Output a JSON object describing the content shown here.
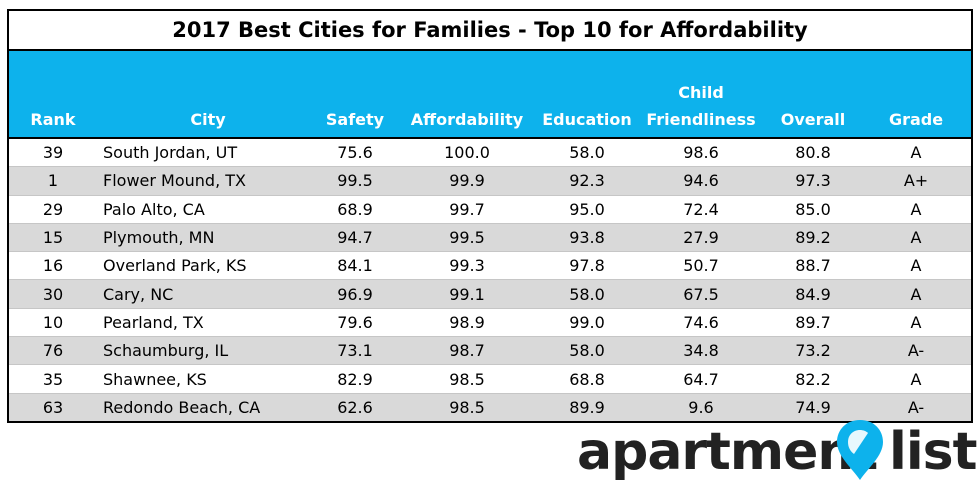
{
  "title": "2017 Best Cities for Families - Top 10 for Affordability",
  "header": {
    "rank": "Rank",
    "city": "City",
    "safety": "Safety",
    "affordability": "Affordability",
    "education": "Education",
    "child_line1": "Child",
    "child_line2": "Friendliness",
    "overall": "Overall",
    "grade": "Grade"
  },
  "rows": [
    {
      "rank": "39",
      "city": "South Jordan, UT",
      "safety": "75.6",
      "affordability": "100.0",
      "education": "58.0",
      "child": "98.6",
      "overall": "80.8",
      "grade": "A"
    },
    {
      "rank": "1",
      "city": "Flower Mound, TX",
      "safety": "99.5",
      "affordability": "99.9",
      "education": "92.3",
      "child": "94.6",
      "overall": "97.3",
      "grade": "A+"
    },
    {
      "rank": "29",
      "city": "Palo Alto, CA",
      "safety": "68.9",
      "affordability": "99.7",
      "education": "95.0",
      "child": "72.4",
      "overall": "85.0",
      "grade": "A"
    },
    {
      "rank": "15",
      "city": "Plymouth, MN",
      "safety": "94.7",
      "affordability": "99.5",
      "education": "93.8",
      "child": "27.9",
      "overall": "89.2",
      "grade": "A"
    },
    {
      "rank": "16",
      "city": "Overland Park, KS",
      "safety": "84.1",
      "affordability": "99.3",
      "education": "97.8",
      "child": "50.7",
      "overall": "88.7",
      "grade": "A"
    },
    {
      "rank": "30",
      "city": "Cary, NC",
      "safety": "96.9",
      "affordability": "99.1",
      "education": "58.0",
      "child": "67.5",
      "overall": "84.9",
      "grade": "A"
    },
    {
      "rank": "10",
      "city": "Pearland, TX",
      "safety": "79.6",
      "affordability": "98.9",
      "education": "99.0",
      "child": "74.6",
      "overall": "89.7",
      "grade": "A"
    },
    {
      "rank": "76",
      "city": "Schaumburg, IL",
      "safety": "73.1",
      "affordability": "98.7",
      "education": "58.0",
      "child": "34.8",
      "overall": "73.2",
      "grade": "A-"
    },
    {
      "rank": "35",
      "city": "Shawnee, KS",
      "safety": "82.9",
      "affordability": "98.5",
      "education": "68.8",
      "child": "64.7",
      "overall": "82.2",
      "grade": "A"
    },
    {
      "rank": "63",
      "city": "Redondo Beach, CA",
      "safety": "62.6",
      "affordability": "98.5",
      "education": "89.9",
      "child": "9.6",
      "overall": "74.9",
      "grade": "A-"
    }
  ],
  "logo": {
    "text_left": "apartment",
    "text_right": "list",
    "icon": "location-pin-icon",
    "pin_color": "#0db2ec",
    "text_color": "#222222"
  },
  "colors": {
    "header_bg": "#0db2ec",
    "stripe": "#d9d9d9"
  }
}
